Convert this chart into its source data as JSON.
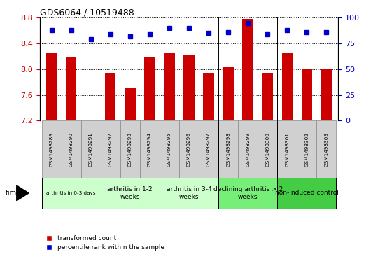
{
  "title": "GDS6064 / 10519488",
  "samples": [
    "GSM1498289",
    "GSM1498290",
    "GSM1498291",
    "GSM1498292",
    "GSM1498293",
    "GSM1498294",
    "GSM1498295",
    "GSM1498296",
    "GSM1498297",
    "GSM1498298",
    "GSM1498299",
    "GSM1498300",
    "GSM1498301",
    "GSM1498302",
    "GSM1498303"
  ],
  "bar_values": [
    8.25,
    8.18,
    7.21,
    7.93,
    7.7,
    8.18,
    8.25,
    8.22,
    7.95,
    8.03,
    8.78,
    7.93,
    8.25,
    8.0,
    8.01
  ],
  "dot_values": [
    88,
    88,
    79,
    84,
    82,
    84,
    90,
    90,
    85,
    86,
    95,
    84,
    88,
    86,
    86
  ],
  "bar_color": "#cc0000",
  "dot_color": "#0000cc",
  "ylim_left": [
    7.2,
    8.8
  ],
  "ylim_right": [
    0,
    100
  ],
  "yticks_left": [
    7.2,
    7.6,
    8.0,
    8.4,
    8.8
  ],
  "yticks_right": [
    0,
    25,
    50,
    75,
    100
  ],
  "groups": [
    {
      "label": "arthritis in 0-3 days",
      "start": 0,
      "end": 3,
      "color": "#ccffcc",
      "small_font": true
    },
    {
      "label": "arthritis in 1-2\nweeks",
      "start": 3,
      "end": 6,
      "color": "#ccffcc",
      "small_font": false
    },
    {
      "label": "arthritis in 3-4\nweeks",
      "start": 6,
      "end": 9,
      "color": "#ccffcc",
      "small_font": false
    },
    {
      "label": "declining arthritis > 2\nweeks",
      "start": 9,
      "end": 12,
      "color": "#77ee77",
      "small_font": false
    },
    {
      "label": "non-induced control",
      "start": 12,
      "end": 15,
      "color": "#44cc44",
      "small_font": false
    }
  ],
  "sample_box_color": "#d0d0d0",
  "grid_color": "black",
  "grid_style": "dotted",
  "bar_width": 0.55,
  "time_label": "time",
  "legend_red": "transformed count",
  "legend_blue": "percentile rank within the sample"
}
